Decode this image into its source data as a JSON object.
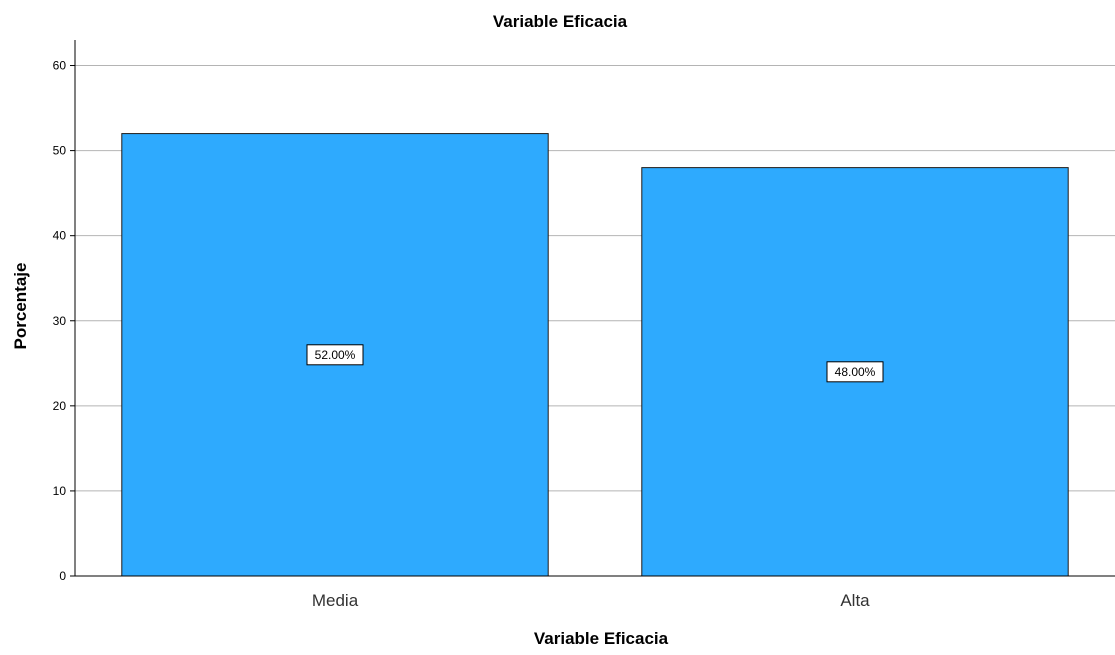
{
  "chart_data": {
    "type": "bar",
    "title": "Variable Eficacia",
    "xlabel": "Variable Eficacia",
    "ylabel": "Porcentaje",
    "categories": [
      "Media",
      "Alta"
    ],
    "values": [
      52.0,
      48.0
    ],
    "data_labels": [
      "52.00%",
      "48.00%"
    ],
    "ylim": [
      0,
      63
    ],
    "yticks": [
      0,
      10,
      20,
      30,
      40,
      50,
      60
    ],
    "grid": true,
    "legend": "none",
    "bar_color": "#2eaafe",
    "bar_border_color": "#1a1a1a"
  }
}
